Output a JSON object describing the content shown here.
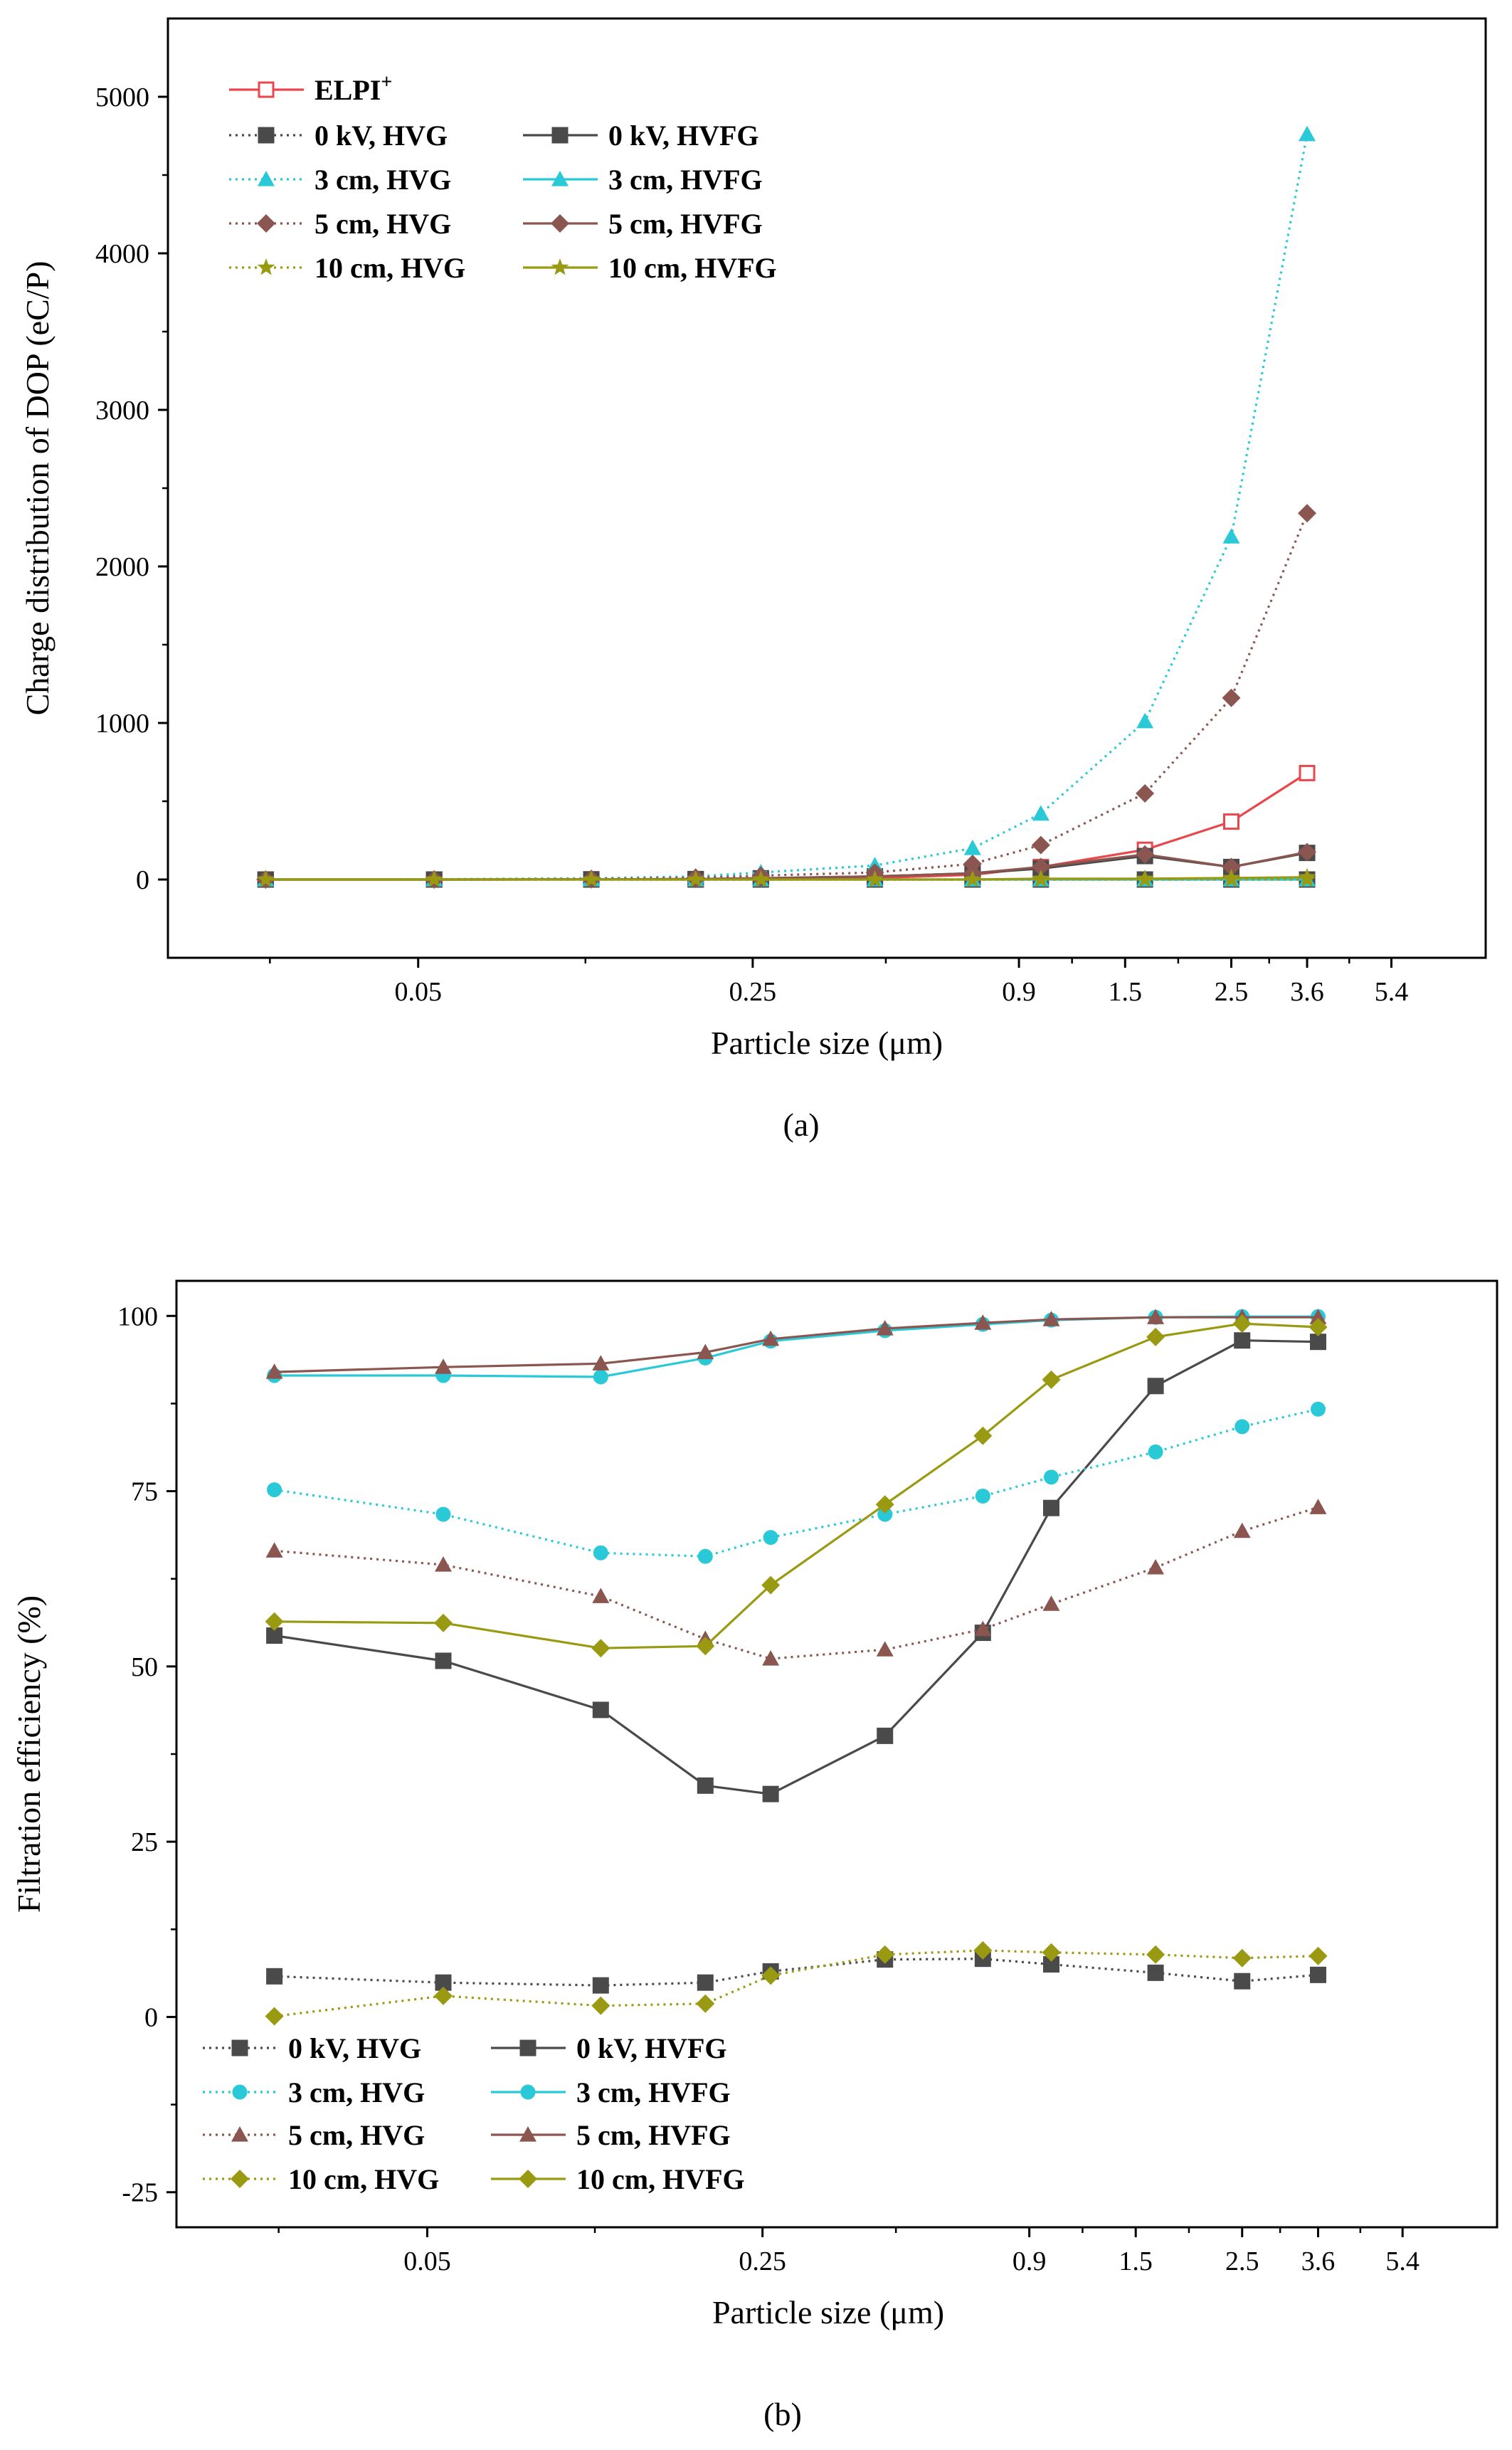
{
  "chart_data": [
    {
      "type": "line",
      "panel_label": "(a)",
      "xlabel": "Particle size (μm)",
      "ylabel": "Charge distribution of DOP (eC/P)",
      "ylim": [
        -500,
        5500
      ],
      "yticks": [
        0,
        1000,
        2000,
        3000,
        4000,
        5000
      ],
      "ytick_labels": [
        "0",
        "1000",
        "2000",
        "3000",
        "4000",
        "5000"
      ],
      "xscale": "log",
      "xlim": [
        0.015,
        8.5
      ],
      "xticks": [
        0.05,
        0.25,
        0.9,
        1.5,
        2.5,
        3.6,
        5.4
      ],
      "xtick_labels": [
        "0.05",
        "0.25",
        "0.9",
        "1.5",
        "2.5",
        "3.6",
        "5.4"
      ],
      "x": [
        0.024,
        0.054,
        0.115,
        0.19,
        0.26,
        0.45,
        0.72,
        1.0,
        1.65,
        2.5,
        3.6
      ],
      "legend_position": "top-left",
      "series": [
        {
          "name": "ELPI+",
          "name_main": "ELPI",
          "name_sup": "+",
          "color": "#e8474c",
          "dash": "solid",
          "marker": "square-open",
          "values": [
            0,
            0,
            1,
            2,
            5,
            10,
            30,
            80,
            190,
            370,
            680
          ]
        },
        {
          "name": "0 kV, HVG",
          "color": "#4a4a4a",
          "dash": "dotted",
          "marker": "square",
          "values": [
            0,
            0,
            0,
            0,
            0,
            0,
            0,
            0,
            0,
            0,
            0
          ]
        },
        {
          "name": "0 kV, HVFG",
          "color": "#4a4a4a",
          "dash": "solid",
          "marker": "square",
          "values": [
            0,
            0,
            1,
            3,
            8,
            20,
            40,
            70,
            150,
            80,
            170
          ]
        },
        {
          "name": "3 cm, HVG",
          "color": "#29c9d8",
          "dash": "dotted",
          "marker": "triangle",
          "values": [
            0,
            2,
            8,
            20,
            45,
            90,
            200,
            420,
            1010,
            2190,
            4760
          ]
        },
        {
          "name": "3 cm, HVFG",
          "color": "#29c9d8",
          "dash": "solid",
          "marker": "triangle",
          "values": [
            0,
            0,
            0,
            0,
            0,
            0,
            0,
            0,
            0,
            0,
            0
          ]
        },
        {
          "name": "5 cm, HVG",
          "color": "#8b5650",
          "dash": "dotted",
          "marker": "diamond",
          "values": [
            0,
            1,
            4,
            12,
            25,
            45,
            100,
            220,
            550,
            1160,
            2340
          ]
        },
        {
          "name": "5 cm, HVFG",
          "color": "#8b5650",
          "dash": "solid",
          "marker": "diamond",
          "values": [
            0,
            0,
            1,
            3,
            8,
            20,
            40,
            80,
            160,
            80,
            175
          ]
        },
        {
          "name": "10 cm, HVG",
          "color": "#9a9a12",
          "dash": "dotted",
          "marker": "star",
          "values": [
            0,
            0,
            0,
            0,
            0,
            0,
            0,
            0,
            0,
            0,
            0
          ]
        },
        {
          "name": "10 cm, HVFG",
          "color": "#9a9a12",
          "dash": "solid",
          "marker": "star",
          "values": [
            0,
            0,
            0,
            0,
            0,
            0,
            0,
            5,
            5,
            10,
            15
          ]
        }
      ]
    },
    {
      "type": "line",
      "panel_label": "(b)",
      "xlabel": "Particle size (μm)",
      "ylabel": "Filtration efficiency (%)",
      "ylim": [
        -30,
        105
      ],
      "yticks": [
        -25,
        0,
        25,
        50,
        75,
        100
      ],
      "ytick_labels": [
        "-25",
        "0",
        "25",
        "50",
        "75",
        "100"
      ],
      "xscale": "log",
      "xlim": [
        0.015,
        8.5
      ],
      "xticks": [
        0.05,
        0.25,
        0.9,
        1.5,
        2.5,
        3.6,
        5.4
      ],
      "xtick_labels": [
        "0.05",
        "0.25",
        "0.9",
        "1.5",
        "2.5",
        "3.6",
        "5.4"
      ],
      "x": [
        0.024,
        0.054,
        0.115,
        0.19,
        0.26,
        0.45,
        0.72,
        1.0,
        1.65,
        2.5,
        3.6
      ],
      "legend_position": "bottom-left",
      "series": [
        {
          "name": "0 kV, HVG",
          "color": "#4a4a4a",
          "dash": "dotted",
          "marker": "square",
          "values": [
            5.8,
            4.9,
            4.5,
            4.9,
            6.5,
            8.2,
            8.3,
            7.5,
            6.3,
            5.1,
            6.0
          ]
        },
        {
          "name": "0 kV, HVFG",
          "color": "#4a4a4a",
          "dash": "solid",
          "marker": "square",
          "values": [
            54.4,
            50.8,
            43.8,
            33.0,
            31.8,
            40.1,
            54.8,
            72.6,
            90.0,
            96.5,
            96.3
          ]
        },
        {
          "name": "3 cm, HVG",
          "color": "#29c9d8",
          "dash": "dotted",
          "marker": "circle",
          "values": [
            75.2,
            71.7,
            66.2,
            65.7,
            68.4,
            71.7,
            74.3,
            77.0,
            80.6,
            84.2,
            86.7
          ]
        },
        {
          "name": "3 cm, HVFG",
          "color": "#29c9d8",
          "dash": "solid",
          "marker": "circle",
          "values": [
            91.5,
            91.5,
            91.3,
            94.0,
            96.4,
            97.9,
            98.8,
            99.4,
            99.8,
            99.9,
            99.9
          ]
        },
        {
          "name": "5 cm, HVG",
          "color": "#8b5650",
          "dash": "dotted",
          "marker": "triangle",
          "values": [
            66.5,
            64.5,
            60.0,
            53.9,
            51.1,
            52.4,
            55.3,
            58.9,
            64.1,
            69.3,
            72.7
          ]
        },
        {
          "name": "5 cm, HVFG",
          "color": "#8b5650",
          "dash": "solid",
          "marker": "triangle",
          "values": [
            92.0,
            92.7,
            93.2,
            94.8,
            96.7,
            98.2,
            99.0,
            99.5,
            99.8,
            99.8,
            99.8
          ]
        },
        {
          "name": "10 cm, HVG",
          "color": "#9a9a12",
          "dash": "dotted",
          "marker": "diamond",
          "values": [
            0.1,
            3.0,
            1.6,
            1.9,
            5.9,
            8.9,
            9.5,
            9.2,
            8.9,
            8.4,
            8.7
          ]
        },
        {
          "name": "10 cm, HVFG",
          "color": "#9a9a12",
          "dash": "solid",
          "marker": "diamond",
          "values": [
            56.4,
            56.2,
            52.6,
            52.9,
            61.6,
            73.1,
            82.9,
            90.9,
            97.0,
            98.9,
            98.4
          ]
        }
      ]
    }
  ]
}
